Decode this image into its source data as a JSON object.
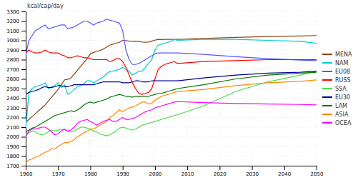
{
  "chart_data": {
    "type": "line",
    "ylabel": "kcal/cap/day",
    "x": [
      1960,
      1961,
      1962,
      1963,
      1964,
      1965,
      1966,
      1967,
      1968,
      1969,
      1970,
      1971,
      1972,
      1973,
      1974,
      1975,
      1976,
      1977,
      1978,
      1979,
      1980,
      1981,
      1982,
      1983,
      1984,
      1985,
      1986,
      1987,
      1988,
      1989,
      1990,
      1991,
      1992,
      1993,
      1994,
      1995,
      1996,
      1997,
      1998,
      1999,
      2000,
      2001,
      2002,
      2003,
      2004,
      2005,
      2006,
      2007,
      2007,
      2015,
      2025,
      2035,
      2045,
      2050
    ],
    "xlim": [
      1960,
      2050
    ],
    "xticks": [
      1960,
      1970,
      1980,
      1990,
      2000,
      2010,
      2020,
      2030,
      2040,
      2050
    ],
    "ylim": [
      1700,
      3300
    ],
    "yticks": [
      1700,
      1800,
      1900,
      2000,
      2100,
      2200,
      2300,
      2400,
      2500,
      2600,
      2700,
      2800,
      2900,
      3000,
      3100,
      3200,
      3300
    ],
    "grid": true,
    "legend": "right",
    "series": [
      {
        "name": "MENA",
        "color": "#8B4513",
        "values": [
          2150,
          2180,
          2210,
          2240,
          2270,
          2300,
          2330,
          2370,
          2410,
          2450,
          2490,
          2540,
          2590,
          2595,
          2610,
          2650,
          2690,
          2730,
          2770,
          2810,
          2860,
          2875,
          2885,
          2895,
          2910,
          2930,
          2950,
          2960,
          2970,
          2980,
          3000,
          2998,
          2992,
          2990,
          2990,
          2988,
          2982,
          2980,
          2982,
          2992,
          3002,
          3010,
          3008,
          3010,
          3010,
          3010,
          3010,
          3010,
          3010,
          3020,
          3030,
          3040,
          3045,
          3050
        ]
      },
      {
        "name": "NAM",
        "color": "#00CCCC",
        "values": [
          2090,
          2460,
          2500,
          2520,
          2530,
          2540,
          2560,
          2500,
          2520,
          2530,
          2560,
          2510,
          2540,
          2440,
          2460,
          2490,
          2520,
          2530,
          2550,
          2580,
          2580,
          2560,
          2580,
          2600,
          2620,
          2650,
          2680,
          2680,
          2690,
          2700,
          2720,
          2700,
          2680,
          2640,
          2660,
          2680,
          2680,
          2720,
          2760,
          2800,
          2900,
          2950,
          2960,
          2970,
          2980,
          2990,
          3010,
          3000,
          3000,
          3010,
          3010,
          3000,
          2990,
          2970
        ]
      },
      {
        "name": "EU08",
        "color": "#5555FF",
        "values": [
          2850,
          3000,
          3050,
          3100,
          3120,
          3140,
          3160,
          3120,
          3130,
          3140,
          3150,
          3160,
          3160,
          3120,
          3130,
          3140,
          3160,
          3180,
          3200,
          3200,
          3180,
          3160,
          3180,
          3190,
          3200,
          3220,
          3210,
          3200,
          3190,
          3180,
          3100,
          2900,
          2800,
          2750,
          2750,
          2760,
          2780,
          2800,
          2820,
          2840,
          2860,
          2870,
          2870,
          2870,
          2870,
          2870,
          2870,
          2870,
          2870,
          2855,
          2830,
          2810,
          2795,
          2790
        ]
      },
      {
        "name": "RUSS",
        "color": "#FF0000",
        "values": [
          2870,
          2900,
          2880,
          2870,
          2870,
          2880,
          2900,
          2880,
          2870,
          2870,
          2870,
          2850,
          2840,
          2820,
          2820,
          2830,
          2840,
          2830,
          2820,
          2820,
          2810,
          2800,
          2800,
          2800,
          2800,
          2800,
          2780,
          2790,
          2810,
          2810,
          2780,
          2720,
          2640,
          2560,
          2500,
          2450,
          2440,
          2450,
          2460,
          2500,
          2600,
          2700,
          2730,
          2750,
          2760,
          2770,
          2780,
          2760,
          2760,
          2780,
          2790,
          2800,
          2800,
          2800
        ]
      },
      {
        "name": "SSA",
        "color": "#44DD44",
        "values": [
          2020,
          2040,
          2060,
          2050,
          2030,
          2020,
          2030,
          2050,
          2070,
          2060,
          2070,
          2080,
          2070,
          2060,
          2050,
          2060,
          2080,
          2100,
          2100,
          2090,
          2080,
          2060,
          2050,
          2030,
          2020,
          2010,
          2020,
          2040,
          2060,
          2090,
          2100,
          2090,
          2080,
          2070,
          2080,
          2100,
          2120,
          2130,
          2140,
          2150,
          2160,
          2170,
          2180,
          2190,
          2200,
          2210,
          2220,
          2230,
          2230,
          2320,
          2470,
          2570,
          2640,
          2680
        ]
      },
      {
        "name": "EU30",
        "color": "#000099",
        "values": [
          2440,
          2460,
          2470,
          2480,
          2490,
          2510,
          2520,
          2510,
          2510,
          2520,
          2530,
          2530,
          2520,
          2520,
          2530,
          2540,
          2540,
          2540,
          2540,
          2540,
          2540,
          2540,
          2550,
          2560,
          2570,
          2570,
          2570,
          2570,
          2570,
          2570,
          2560,
          2560,
          2560,
          2570,
          2580,
          2580,
          2570,
          2570,
          2570,
          2580,
          2580,
          2580,
          2580,
          2580,
          2580,
          2580,
          2580,
          2580,
          2580,
          2610,
          2640,
          2660,
          2670,
          2680
        ]
      },
      {
        "name": "LAM",
        "color": "#007700",
        "values": [
          2050,
          2070,
          2090,
          2100,
          2120,
          2140,
          2160,
          2180,
          2200,
          2220,
          2230,
          2240,
          2250,
          2260,
          2270,
          2260,
          2280,
          2300,
          2330,
          2350,
          2360,
          2350,
          2360,
          2370,
          2380,
          2390,
          2410,
          2420,
          2430,
          2440,
          2430,
          2420,
          2420,
          2410,
          2420,
          2420,
          2420,
          2420,
          2420,
          2430,
          2440,
          2450,
          2450,
          2460,
          2470,
          2480,
          2490,
          2500,
          2500,
          2540,
          2600,
          2640,
          2660,
          2670
        ]
      },
      {
        "name": "ASIA",
        "color": "#FF8800",
        "values": [
          1730,
          1760,
          1770,
          1790,
          1800,
          1820,
          1840,
          1850,
          1880,
          1870,
          1900,
          1920,
          1940,
          1940,
          1950,
          1970,
          2000,
          2020,
          2040,
          2060,
          2080,
          2080,
          2100,
          2120,
          2140,
          2160,
          2200,
          2220,
          2250,
          2280,
          2260,
          2280,
          2300,
          2310,
          2320,
          2340,
          2360,
          2360,
          2340,
          2350,
          2380,
          2400,
          2420,
          2430,
          2440,
          2450,
          2460,
          2470,
          2470,
          2490,
          2530,
          2560,
          2575,
          2590
        ]
      },
      {
        "name": "OCEA",
        "color": "#FF00FF",
        "values": [
          2000,
          2060,
          2080,
          2080,
          2090,
          2100,
          2100,
          2080,
          2050,
          2020,
          2030,
          2060,
          2080,
          2060,
          2070,
          2100,
          2140,
          2160,
          2170,
          2180,
          2160,
          2140,
          2120,
          2140,
          2160,
          2170,
          2180,
          2160,
          2160,
          2180,
          2200,
          2180,
          2180,
          2190,
          2200,
          2220,
          2240,
          2260,
          2270,
          2280,
          2300,
          2310,
          2320,
          2330,
          2340,
          2350,
          2360,
          2365,
          2365,
          2355,
          2345,
          2340,
          2335,
          2330
        ]
      }
    ]
  }
}
